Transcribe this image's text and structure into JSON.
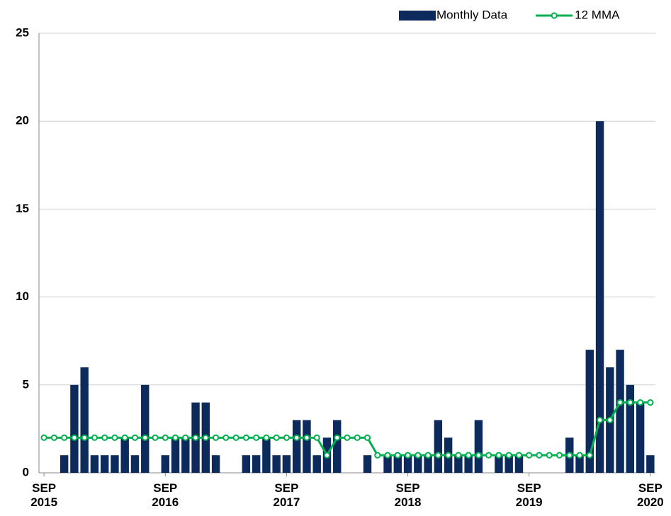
{
  "chart_data": {
    "type": "bar-line",
    "categories": [
      "SEP 2015",
      null,
      null,
      null,
      null,
      null,
      null,
      null,
      null,
      null,
      null,
      null,
      "SEP 2016",
      null,
      null,
      null,
      null,
      null,
      null,
      null,
      null,
      null,
      null,
      null,
      "SEP 2017",
      null,
      null,
      null,
      null,
      null,
      null,
      null,
      null,
      null,
      null,
      null,
      "SEP 2018",
      null,
      null,
      null,
      null,
      null,
      null,
      null,
      null,
      null,
      null,
      null,
      "SEP 2019",
      null,
      null,
      null,
      null,
      null,
      null,
      null,
      null,
      null,
      null,
      null,
      "SEP 2020"
    ],
    "series": [
      {
        "name": "Monthly Data",
        "type": "bar",
        "color": "#0d2a5c",
        "values": [
          0,
          0,
          1,
          5,
          6,
          1,
          1,
          1,
          2,
          1,
          5,
          0,
          1,
          2,
          2,
          4,
          4,
          1,
          0,
          0,
          1,
          1,
          2,
          1,
          1,
          3,
          3,
          1,
          2,
          3,
          0,
          0,
          1,
          0,
          1,
          1,
          1,
          1,
          1,
          3,
          2,
          1,
          1,
          3,
          0,
          1,
          1,
          1,
          0,
          0,
          0,
          0,
          2,
          1,
          7,
          20,
          6,
          7,
          5,
          4,
          1
        ]
      },
      {
        "name": "12 MMA",
        "type": "line",
        "color": "#00b050",
        "values": [
          2,
          2,
          2,
          2,
          2,
          2,
          2,
          2,
          2,
          2,
          2,
          2,
          2,
          2,
          2,
          2,
          2,
          2,
          2,
          2,
          2,
          2,
          2,
          2,
          2,
          2,
          2,
          2,
          1,
          2,
          2,
          2,
          2,
          1,
          1,
          1,
          1,
          1,
          1,
          1,
          1,
          1,
          1,
          1,
          1,
          1,
          1,
          1,
          1,
          1,
          1,
          1,
          1,
          1,
          1,
          3,
          3,
          4,
          4,
          4,
          4
        ]
      }
    ],
    "ylim": [
      0,
      25
    ],
    "yticks": [
      0,
      5,
      10,
      15,
      20,
      25
    ],
    "grid": true,
    "legend": "top-right"
  }
}
